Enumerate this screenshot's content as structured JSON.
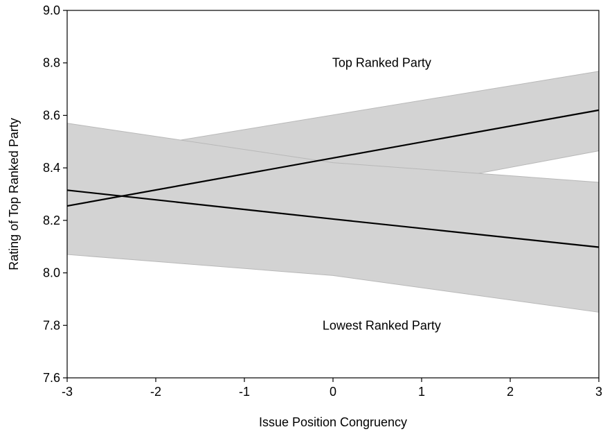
{
  "chart_data": {
    "type": "line",
    "title": "",
    "xlabel": "Issue Position Congruency",
    "ylabel": "Rating of Top Ranked Party",
    "xlim": [
      -3,
      3
    ],
    "ylim": [
      7.6,
      9.0
    ],
    "x_ticks": [
      -3,
      -2,
      -1,
      0,
      1,
      2,
      3
    ],
    "y_ticks": [
      7.6,
      7.8,
      8.0,
      8.2,
      8.4,
      8.6,
      8.8,
      9.0
    ],
    "x_tick_labels": [
      "-3",
      "-2",
      "-1",
      "0",
      "1",
      "2",
      "3"
    ],
    "y_tick_labels": [
      "7.6",
      "7.8",
      "8.0",
      "8.2",
      "8.4",
      "8.6",
      "8.8",
      "9.0"
    ],
    "grid": false,
    "band_color": "#d3d3d3",
    "band_edge_color": "#b8b8b8",
    "line_color": "#000000",
    "series": [
      {
        "name": "Top Ranked Party",
        "x": [
          -3,
          3
        ],
        "y": [
          8.255,
          8.62
        ],
        "ci_lower": [
          8.085,
          8.465
        ],
        "ci_upper": [
          8.435,
          8.768
        ]
      },
      {
        "name": "Lowest Ranked Party",
        "x": [
          -3,
          0,
          3
        ],
        "y": [
          8.315,
          8.205,
          8.098
        ],
        "ci_lower": [
          8.07,
          7.99,
          7.85
        ],
        "ci_upper": [
          8.57,
          8.42,
          8.345
        ]
      }
    ],
    "annotations": [
      {
        "text": "Top Ranked Party",
        "x": 0.55,
        "y": 8.8
      },
      {
        "text": "Lowest Ranked Party",
        "x": 0.55,
        "y": 7.8
      }
    ]
  }
}
